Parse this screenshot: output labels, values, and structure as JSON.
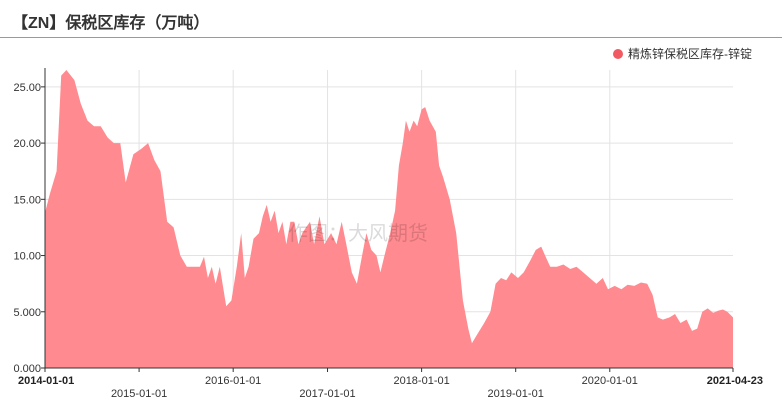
{
  "title": "【ZN】保税区库存（万吨）",
  "watermark": "作图：大风期货",
  "colors": {
    "area_fill": "#ff8a8f",
    "legend_marker": "#f25a63",
    "grid": "#e3e3e3",
    "axis": "#333333"
  },
  "chart_data": {
    "type": "area",
    "title": "【ZN】保税区库存（万吨）",
    "xlabel": "",
    "ylabel": "",
    "ylim": [
      0,
      26.5
    ],
    "y_ticks": [
      "0.000",
      "5.000",
      "10.00",
      "15.00",
      "20.00",
      "25.00"
    ],
    "x_ticks": [
      {
        "label": "2014-01-01",
        "date": "2014-01-01",
        "row": 0,
        "bold": true
      },
      {
        "label": "2015-01-01",
        "date": "2015-01-01",
        "row": 1,
        "bold": false
      },
      {
        "label": "2016-01-01",
        "date": "2016-01-01",
        "row": 0,
        "bold": false
      },
      {
        "label": "2017-01-01",
        "date": "2017-01-01",
        "row": 1,
        "bold": false
      },
      {
        "label": "2018-01-01",
        "date": "2018-01-01",
        "row": 0,
        "bold": false
      },
      {
        "label": "2019-01-01",
        "date": "2019-01-01",
        "row": 1,
        "bold": false
      },
      {
        "label": "2020-01-01",
        "date": "2020-01-01",
        "row": 0,
        "bold": false
      },
      {
        "label": "2021-04-23",
        "date": "2021-04-23",
        "row": 0,
        "bold": true
      }
    ],
    "grid": true,
    "legend_position": "top-right",
    "series": [
      {
        "name": "精炼锌保税区库存-锌锭",
        "points": [
          [
            "2014-01-01",
            13.8
          ],
          [
            "2014-01-20",
            15.5
          ],
          [
            "2014-02-15",
            17.5
          ],
          [
            "2014-03-05",
            26.0
          ],
          [
            "2014-03-25",
            26.5
          ],
          [
            "2014-04-25",
            25.6
          ],
          [
            "2014-05-20",
            23.5
          ],
          [
            "2014-06-15",
            22.0
          ],
          [
            "2014-07-10",
            21.5
          ],
          [
            "2014-08-05",
            21.5
          ],
          [
            "2014-09-01",
            20.5
          ],
          [
            "2014-09-25",
            20.0
          ],
          [
            "2014-10-20",
            20.0
          ],
          [
            "2014-11-10",
            16.5
          ],
          [
            "2014-12-10",
            19.0
          ],
          [
            "2015-01-10",
            19.5
          ],
          [
            "2015-02-05",
            20.0
          ],
          [
            "2015-03-01",
            18.5
          ],
          [
            "2015-03-25",
            17.5
          ],
          [
            "2015-04-20",
            13.0
          ],
          [
            "2015-05-15",
            12.5
          ],
          [
            "2015-06-10",
            10.0
          ],
          [
            "2015-07-05",
            9.0
          ],
          [
            "2015-08-01",
            9.0
          ],
          [
            "2015-08-25",
            9.0
          ],
          [
            "2015-09-10",
            9.9
          ],
          [
            "2015-09-25",
            8.0
          ],
          [
            "2015-10-10",
            9.0
          ],
          [
            "2015-10-25",
            7.5
          ],
          [
            "2015-11-10",
            9.0
          ],
          [
            "2015-12-05",
            5.5
          ],
          [
            "2015-12-25",
            6.0
          ],
          [
            "2016-01-15",
            9.0
          ],
          [
            "2016-02-01",
            12.0
          ],
          [
            "2016-02-15",
            8.0
          ],
          [
            "2016-03-01",
            9.0
          ],
          [
            "2016-03-20",
            11.5
          ],
          [
            "2016-04-10",
            12.0
          ],
          [
            "2016-04-25",
            13.5
          ],
          [
            "2016-05-10",
            14.5
          ],
          [
            "2016-05-25",
            13.0
          ],
          [
            "2016-06-10",
            14.0
          ],
          [
            "2016-06-25",
            12.0
          ],
          [
            "2016-07-10",
            13.0
          ],
          [
            "2016-07-25",
            11.0
          ],
          [
            "2016-08-10",
            13.0
          ],
          [
            "2016-08-25",
            13.0
          ],
          [
            "2016-09-10",
            11.0
          ],
          [
            "2016-09-25",
            12.0
          ],
          [
            "2016-10-10",
            12.5
          ],
          [
            "2016-10-25",
            13.0
          ],
          [
            "2016-11-10",
            11.0
          ],
          [
            "2016-12-01",
            13.5
          ],
          [
            "2016-12-20",
            11.0
          ],
          [
            "2017-01-15",
            12.0
          ],
          [
            "2017-02-05",
            11.0
          ],
          [
            "2017-02-25",
            13.0
          ],
          [
            "2017-03-15",
            11.0
          ],
          [
            "2017-04-05",
            8.5
          ],
          [
            "2017-04-25",
            7.5
          ],
          [
            "2017-05-15",
            10.0
          ],
          [
            "2017-06-01",
            12.0
          ],
          [
            "2017-06-20",
            10.5
          ],
          [
            "2017-07-10",
            10.0
          ],
          [
            "2017-07-25",
            8.5
          ],
          [
            "2017-08-10",
            10.0
          ],
          [
            "2017-09-01",
            12.0
          ],
          [
            "2017-09-20",
            14.0
          ],
          [
            "2017-10-05",
            18.0
          ],
          [
            "2017-10-20",
            20.0
          ],
          [
            "2017-11-01",
            22.0
          ],
          [
            "2017-11-15",
            21.0
          ],
          [
            "2017-12-01",
            22.0
          ],
          [
            "2017-12-15",
            21.5
          ],
          [
            "2018-01-01",
            23.0
          ],
          [
            "2018-01-15",
            23.2
          ],
          [
            "2018-02-01",
            22.0
          ],
          [
            "2018-02-25",
            21.0
          ],
          [
            "2018-03-10",
            18.0
          ],
          [
            "2018-03-25",
            17.0
          ],
          [
            "2018-04-20",
            15.0
          ],
          [
            "2018-05-15",
            12.0
          ],
          [
            "2018-06-10",
            6.0
          ],
          [
            "2018-07-01",
            3.5
          ],
          [
            "2018-07-15",
            2.2
          ],
          [
            "2018-08-05",
            3.0
          ],
          [
            "2018-09-01",
            4.0
          ],
          [
            "2018-09-25",
            5.0
          ],
          [
            "2018-10-15",
            7.5
          ],
          [
            "2018-11-05",
            8.0
          ],
          [
            "2018-11-25",
            7.8
          ],
          [
            "2018-12-15",
            8.5
          ],
          [
            "2019-01-10",
            8.0
          ],
          [
            "2019-02-01",
            8.5
          ],
          [
            "2019-02-25",
            9.5
          ],
          [
            "2019-03-20",
            10.5
          ],
          [
            "2019-04-10",
            10.8
          ],
          [
            "2019-04-25",
            10.0
          ],
          [
            "2019-05-15",
            9.0
          ],
          [
            "2019-06-10",
            9.0
          ],
          [
            "2019-07-05",
            9.2
          ],
          [
            "2019-08-01",
            8.8
          ],
          [
            "2019-08-25",
            9.0
          ],
          [
            "2019-09-20",
            8.5
          ],
          [
            "2019-10-15",
            8.0
          ],
          [
            "2019-11-10",
            7.5
          ],
          [
            "2019-12-05",
            8.0
          ],
          [
            "2019-12-25",
            7.0
          ],
          [
            "2020-01-20",
            7.3
          ],
          [
            "2020-02-15",
            7.0
          ],
          [
            "2020-03-10",
            7.4
          ],
          [
            "2020-04-05",
            7.3
          ],
          [
            "2020-05-01",
            7.6
          ],
          [
            "2020-05-25",
            7.5
          ],
          [
            "2020-06-15",
            6.5
          ],
          [
            "2020-07-05",
            4.5
          ],
          [
            "2020-07-25",
            4.3
          ],
          [
            "2020-08-20",
            4.5
          ],
          [
            "2020-09-10",
            4.8
          ],
          [
            "2020-10-01",
            4.0
          ],
          [
            "2020-10-25",
            4.3
          ],
          [
            "2020-11-15",
            3.3
          ],
          [
            "2020-12-05",
            3.5
          ],
          [
            "2020-12-25",
            5.0
          ],
          [
            "2021-01-15",
            5.3
          ],
          [
            "2021-02-05",
            4.9
          ],
          [
            "2021-02-25",
            5.1
          ],
          [
            "2021-03-15",
            5.2
          ],
          [
            "2021-04-01",
            5.0
          ],
          [
            "2021-04-23",
            4.5
          ]
        ]
      }
    ]
  }
}
